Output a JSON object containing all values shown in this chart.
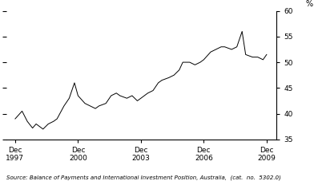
{
  "title": "",
  "ylabel": "%",
  "source_text": "Source: Balance of Payments and International Investment Position, Australia,  (cat.  no.  5302.0)",
  "ylim": [
    35,
    60
  ],
  "yticks": [
    35,
    40,
    45,
    50,
    55,
    60
  ],
  "xtick_labels": [
    "Dec\n1997",
    "Dec\n2000",
    "Dec\n2003",
    "Dec\n2006",
    "Dec\n2009"
  ],
  "xtick_positions": [
    1997.92,
    2000.92,
    2003.92,
    2006.92,
    2009.92
  ],
  "line_color": "#000000",
  "background_color": "#ffffff",
  "data": {
    "dates": [
      1997.92,
      1998.25,
      1998.5,
      1998.75,
      1998.92,
      1999.25,
      1999.5,
      1999.75,
      1999.92,
      2000.25,
      2000.5,
      2000.75,
      2000.92,
      2001.25,
      2001.5,
      2001.75,
      2001.92,
      2002.25,
      2002.5,
      2002.75,
      2002.92,
      2003.25,
      2003.5,
      2003.75,
      2003.92,
      2004.25,
      2004.5,
      2004.75,
      2004.92,
      2005.25,
      2005.5,
      2005.75,
      2005.92,
      2006.25,
      2006.5,
      2006.75,
      2006.92,
      2007.25,
      2007.5,
      2007.75,
      2007.92,
      2008.25,
      2008.5,
      2008.75,
      2008.92,
      2009.25,
      2009.5,
      2009.75,
      2009.92
    ],
    "values": [
      39.0,
      40.5,
      38.5,
      37.2,
      38.0,
      37.0,
      38.0,
      38.5,
      39.0,
      41.5,
      43.0,
      46.0,
      43.5,
      42.0,
      41.5,
      41.0,
      41.5,
      42.0,
      43.5,
      44.0,
      43.5,
      43.0,
      43.5,
      42.5,
      43.0,
      44.0,
      44.5,
      46.0,
      46.5,
      47.0,
      47.5,
      48.5,
      50.0,
      50.0,
      49.5,
      50.0,
      50.5,
      52.0,
      52.5,
      53.0,
      53.0,
      52.5,
      53.0,
      56.0,
      51.5,
      51.0,
      51.0,
      50.5,
      51.5
    ]
  }
}
